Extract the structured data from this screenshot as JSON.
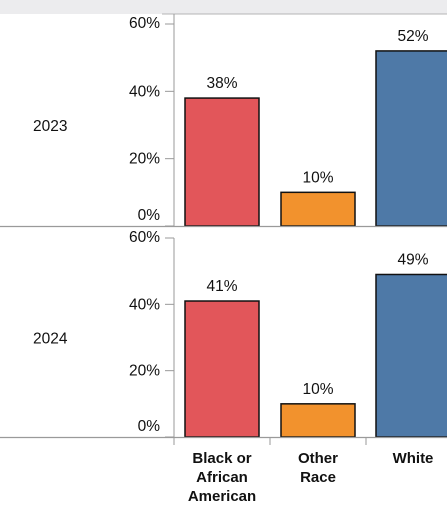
{
  "chart_data": {
    "type": "bar",
    "categories": [
      "Black or African American",
      "Other Race",
      "White"
    ],
    "category_label_lines": [
      [
        "Black or",
        "African",
        "American"
      ],
      [
        "Other",
        "Race"
      ],
      [
        "White"
      ]
    ],
    "colors": [
      "#e2565a",
      "#f2922d",
      "#4e79a7"
    ],
    "y_ticks": [
      "60%",
      "40%",
      "20%",
      "0%"
    ],
    "ylim": [
      0,
      60
    ],
    "rows": [
      {
        "label": "2023",
        "values": [
          38,
          10,
          52
        ],
        "data_labels": [
          "38%",
          "10%",
          "52%"
        ]
      },
      {
        "label": "2024",
        "values": [
          41,
          10,
          49
        ],
        "data_labels": [
          "41%",
          "10%",
          "49%"
        ]
      }
    ]
  }
}
